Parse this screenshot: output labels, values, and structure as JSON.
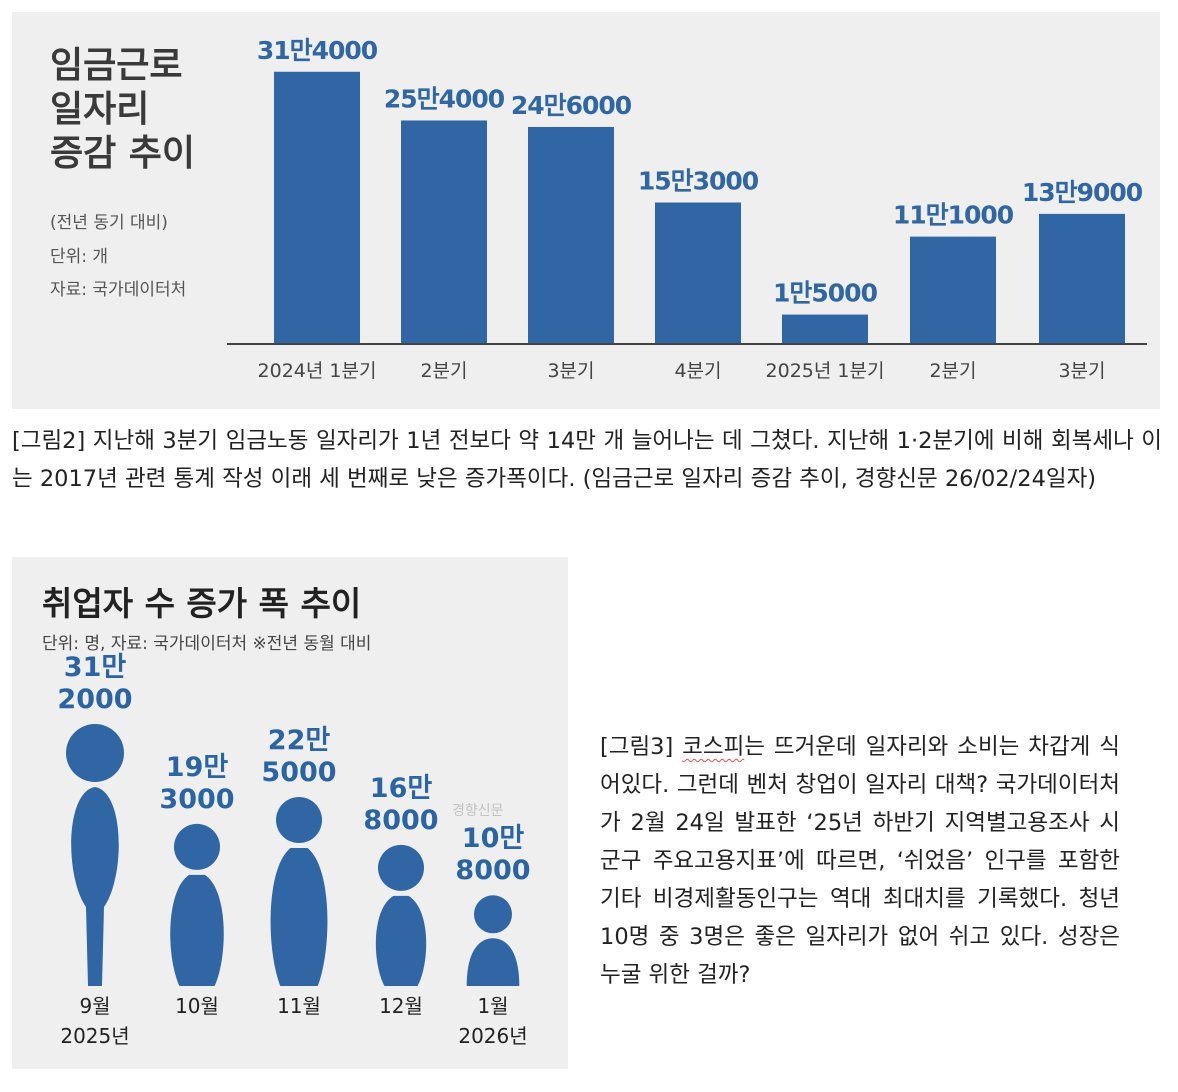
{
  "figure2": {
    "title": "임금근로\n일자리\n증감 추이",
    "note": "(전년 동기 대비)",
    "unit": "단위: 개",
    "source": "자료: 국가데이터처",
    "chart_data": {
      "type": "bar",
      "categories": [
        "2024년 1분기",
        "2분기",
        "3분기",
        "4분기",
        "2025년 1분기",
        "2분기",
        "3분기"
      ],
      "values": [
        314000,
        254000,
        246000,
        153000,
        15000,
        111000,
        139000
      ],
      "data_labels": [
        "31만4000",
        "25만4000",
        "24만6000",
        "15만3000",
        "1만5000",
        "11만1000",
        "13만9000"
      ],
      "title": "임금근로 일자리 증감 추이",
      "ylabel": "단위: 개",
      "ylim": [
        -20000,
        314000
      ],
      "bar_color": "#2f66a3"
    }
  },
  "caption2": "[그림2] 지난해 3분기 임금노동 일자리가 1년 전보다 약 14만 개 늘어나는 데 그쳤다. 지난해 1·2분기에 비해 회복세나 이는 2017년 관련 통계 작성 이래 세 번째로 낮은 증가폭이다. (임금근로 일자리 증감 추이, 경향신문 26/02/24일자)",
  "figure3": {
    "title": "취업자 수 증가 폭 추이",
    "subtitle": "단위: 명, 자료: 국가데이터처 ※전년 동월 대비",
    "watermark": "경향신문",
    "chart_data": {
      "type": "bar",
      "categories": [
        "9월 2025년",
        "10월",
        "11월",
        "12월",
        "1월 2026년"
      ],
      "values": [
        312000,
        193000,
        225000,
        168000,
        108000
      ],
      "data_labels": [
        [
          "31만",
          "2000"
        ],
        [
          "19만",
          "3000"
        ],
        [
          "22만",
          "5000"
        ],
        [
          "16만",
          "8000"
        ],
        [
          "10만",
          "8000"
        ]
      ],
      "x_labels": [
        [
          "9월",
          "2025년"
        ],
        [
          "10월",
          ""
        ],
        [
          "11월",
          ""
        ],
        [
          "12월",
          ""
        ],
        [
          "1월",
          "2026년"
        ]
      ],
      "title": "취업자 수 증가 폭 추이",
      "figure_color": "#2f66a3"
    }
  },
  "caption3": {
    "prefix": "[그림3] ",
    "highlight": "코스피",
    "rest": "는 뜨거운데 일자리와 소비는 차갑게 식어있다. 그런데 벤처 창업이 일자리 대책? 국가데이터처가 2월 24일 발표한 ‘25년 하반기 지역별고용조사 시군구 주요고용지표’에 따르면, ‘쉬었음’ 인구를 포함한 기타 비경제활동인구는 역대 최대치를 기록했다. 청년 10명 중 3명은 좋은 일자리가 없어 쉬고 있다. 성장은 누굴 위한 걸까?"
  }
}
